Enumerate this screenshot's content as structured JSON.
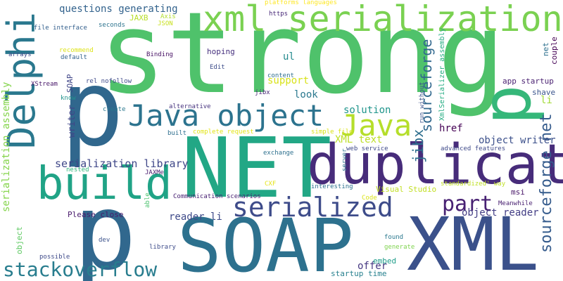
{
  "words": [
    {
      "text": "strong",
      "color": "#4fc26b",
      "vertical": false
    },
    {
      "text": "p",
      "color": "#30678d",
      "vertical": false
    },
    {
      "text": "NET",
      "color": "#22a785",
      "vertical": false
    },
    {
      "text": "SOAP",
      "color": "#2d718e",
      "vertical": false
    },
    {
      "text": "XML",
      "color": "#3b518b",
      "vertical": false
    },
    {
      "text": "duplicate",
      "color": "#472c7a",
      "vertical": false
    },
    {
      "text": "p",
      "color": "#31688e",
      "vertical": false
    },
    {
      "text": "xml serialization",
      "color": "#7ad151",
      "vertical": false
    },
    {
      "text": "Delphi",
      "color": "#2a788e",
      "vertical": true
    },
    {
      "text": "build",
      "color": "#20a386",
      "vertical": false
    },
    {
      "text": "Java object",
      "color": "#2c738e",
      "vertical": false
    },
    {
      "text": "Java",
      "color": "#b5de2b",
      "vertical": false
    },
    {
      "text": "serialized",
      "color": "#3e4c8a",
      "vertical": false
    },
    {
      "text": "stackoverflow",
      "color": "#287d8e",
      "vertical": false
    },
    {
      "text": "part",
      "color": "#482173",
      "vertical": false
    },
    {
      "text": "p",
      "color": "#35b779",
      "vertical": true
    },
    {
      "text": "sourceforge net",
      "color": "#365c8d",
      "vertical": true
    },
    {
      "text": "jibx",
      "color": "#2e6f8e",
      "vertical": true
    },
    {
      "text": "sourceforge",
      "color": "#31688e",
      "vertical": true
    },
    {
      "text": "serialization library",
      "color": "#3f4788",
      "vertical": false
    },
    {
      "text": "serialization assembly",
      "color": "#84d44b",
      "vertical": true
    },
    {
      "text": "object reader",
      "color": "#433e85",
      "vertical": false
    },
    {
      "text": "object writer",
      "color": "#3c508b",
      "vertical": false
    },
    {
      "text": "questions generating",
      "color": "#33638d",
      "vertical": false
    },
    {
      "text": "XML text",
      "color": "#bddf26",
      "vertical": false
    },
    {
      "text": "reader li",
      "color": "#3e4a89",
      "vertical": false
    },
    {
      "text": "offer",
      "color": "#453781",
      "vertical": false
    },
    {
      "text": "support",
      "color": "#d8e219",
      "vertical": false
    },
    {
      "text": "solution",
      "color": "#1f958b",
      "vertical": false
    },
    {
      "text": "look",
      "color": "#2a788e",
      "vertical": false
    },
    {
      "text": "href",
      "color": "#440154",
      "vertical": false
    },
    {
      "text": "ul",
      "color": "#238a8d",
      "vertical": false
    },
    {
      "text": "writer",
      "color": "#404588",
      "vertical": true
    },
    {
      "text": "li",
      "color": "#a2da37",
      "vertical": false
    },
    {
      "text": "object",
      "color": "#5ec962",
      "vertical": true
    },
    {
      "text": "embed",
      "color": "#1e9c89",
      "vertical": false
    },
    {
      "text": "hoping",
      "color": "#46307e",
      "vertical": false
    },
    {
      "text": "app startup",
      "color": "#481f70",
      "vertical": false
    },
    {
      "text": "shave",
      "color": "#3a548c",
      "vertical": false
    },
    {
      "text": "couple",
      "color": "#440154",
      "vertical": true
    },
    {
      "text": "msi",
      "color": "#481668",
      "vertical": false
    },
    {
      "text": "net",
      "color": "#2d708e",
      "vertical": true
    },
    {
      "text": "XmlSerializer assembly",
      "color": "#25ac82",
      "vertical": true
    },
    {
      "text": "JAXB",
      "color": "#b8de29",
      "vertical": false
    },
    {
      "text": "SOAP",
      "color": "#404688",
      "vertical": true
    },
    {
      "text": "Please close",
      "color": "#481a6c",
      "vertical": false
    },
    {
      "text": "Visual Studio",
      "color": "#c2df23",
      "vertical": false
    },
    {
      "text": "startup time",
      "color": "#27808e",
      "vertical": false
    },
    {
      "text": "https",
      "color": "#482878",
      "vertical": false
    },
    {
      "text": "platforms languages",
      "color": "#fde725",
      "vertical": false
    },
    {
      "text": "file interface",
      "color": "#34608d",
      "vertical": false
    },
    {
      "text": "seconds",
      "color": "#2c738e",
      "vertical": false
    },
    {
      "text": "arrays",
      "color": "#3e4989",
      "vertical": false
    },
    {
      "text": "recommend",
      "color": "#dde318",
      "vertical": false
    },
    {
      "text": "default",
      "color": "#33638d",
      "vertical": false
    },
    {
      "text": "Binding",
      "color": "#471164",
      "vertical": false
    },
    {
      "text": "Axis",
      "color": "#b2dd2d",
      "vertical": false
    },
    {
      "text": "JSON",
      "color": "#c8e020",
      "vertical": false
    },
    {
      "text": "Edit",
      "color": "#3d4d8a",
      "vertical": false
    },
    {
      "text": "rel nofollow",
      "color": "#3e4989",
      "vertical": false
    },
    {
      "text": "content",
      "color": "#2e6e8e",
      "vertical": false
    },
    {
      "text": "XStream",
      "color": "#481769",
      "vertical": false
    },
    {
      "text": "jibx",
      "color": "#482576",
      "vertical": false
    },
    {
      "text": "know",
      "color": "#21918c",
      "vertical": false
    },
    {
      "text": "create",
      "color": "#2a788e",
      "vertical": false
    },
    {
      "text": "alternative",
      "color": "#46327e",
      "vertical": false
    },
    {
      "text": "built",
      "color": "#2e6e8e",
      "vertical": false
    },
    {
      "text": "complete request",
      "color": "#e2e418",
      "vertical": false
    },
    {
      "text": "simple file",
      "color": "#dae319",
      "vertical": false
    },
    {
      "text": "web service",
      "color": "#3e4a89",
      "vertical": false
    },
    {
      "text": "server",
      "color": "#2c728e",
      "vertical": true
    },
    {
      "text": "run without",
      "color": "#3b528b",
      "vertical": true
    },
    {
      "text": "advanced features",
      "color": "#3e4989",
      "vertical": false
    },
    {
      "text": "exchange",
      "color": "#2d708e",
      "vertical": false
    },
    {
      "text": "nested",
      "color": "#32b67a",
      "vertical": false
    },
    {
      "text": "JAXMe",
      "color": "#481b6d",
      "vertical": false
    },
    {
      "text": "standardized' way",
      "color": "#bfdf25",
      "vertical": false
    },
    {
      "text": "Communication scenarios",
      "color": "#482173",
      "vertical": false
    },
    {
      "text": "CXF",
      "color": "#e5e419",
      "vertical": false
    },
    {
      "text": "interesting",
      "color": "#2c718e",
      "vertical": false
    },
    {
      "text": "Meanwhile",
      "color": "#481f70",
      "vertical": false
    },
    {
      "text": "able",
      "color": "#4ac16d",
      "vertical": true
    },
    {
      "text": "Code",
      "color": "#dae319",
      "vertical": false
    },
    {
      "text": "dev",
      "color": "#3b528b",
      "vertical": false
    },
    {
      "text": "library",
      "color": "#3e4c8a",
      "vertical": false
    },
    {
      "text": "found",
      "color": "#2a788e",
      "vertical": false
    },
    {
      "text": "generate",
      "color": "#7fd34e",
      "vertical": false
    },
    {
      "text": "possible",
      "color": "#3e4a89",
      "vertical": false
    }
  ]
}
